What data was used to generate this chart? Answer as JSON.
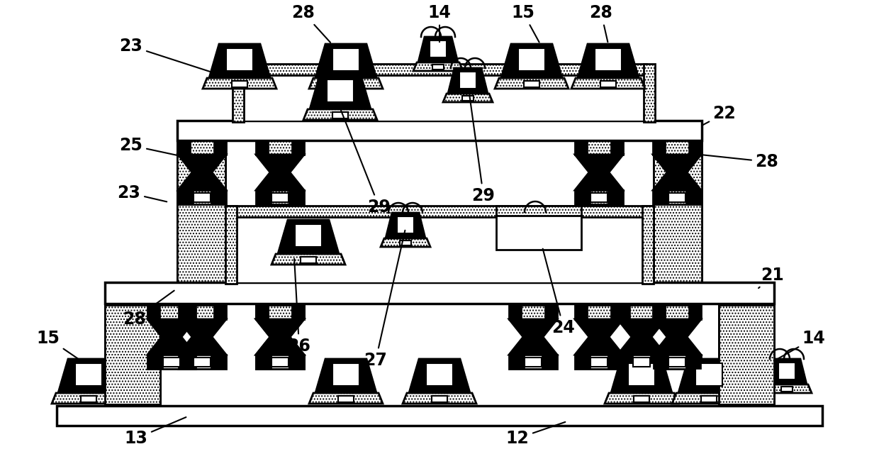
{
  "bg_color": "#ffffff",
  "lw": 2.0,
  "tlw": 2.5,
  "label_fontsize": 17,
  "label_fontweight": "bold",
  "labels": [
    [
      "12",
      730,
      618,
      800,
      594
    ],
    [
      "13",
      192,
      618,
      265,
      587
    ],
    [
      "14",
      620,
      18,
      620,
      62
    ],
    [
      "14",
      1148,
      477,
      1095,
      507
    ],
    [
      "15",
      738,
      18,
      762,
      62
    ],
    [
      "15",
      68,
      477,
      112,
      507
    ],
    [
      "21",
      1090,
      388,
      1068,
      408
    ],
    [
      "22",
      1022,
      160,
      988,
      178
    ],
    [
      "23",
      185,
      65,
      318,
      108
    ],
    [
      "23",
      182,
      272,
      238,
      285
    ],
    [
      "24",
      795,
      462,
      765,
      348
    ],
    [
      "25",
      185,
      205,
      255,
      220
    ],
    [
      "26",
      422,
      488,
      415,
      362
    ],
    [
      "27",
      530,
      508,
      572,
      322
    ],
    [
      "28",
      428,
      18,
      468,
      62
    ],
    [
      "28",
      848,
      18,
      858,
      62
    ],
    [
      "28",
      1082,
      228,
      988,
      218
    ],
    [
      "28",
      190,
      450,
      248,
      408
    ],
    [
      "29",
      535,
      292,
      478,
      148
    ],
    [
      "29",
      682,
      276,
      662,
      132
    ]
  ]
}
